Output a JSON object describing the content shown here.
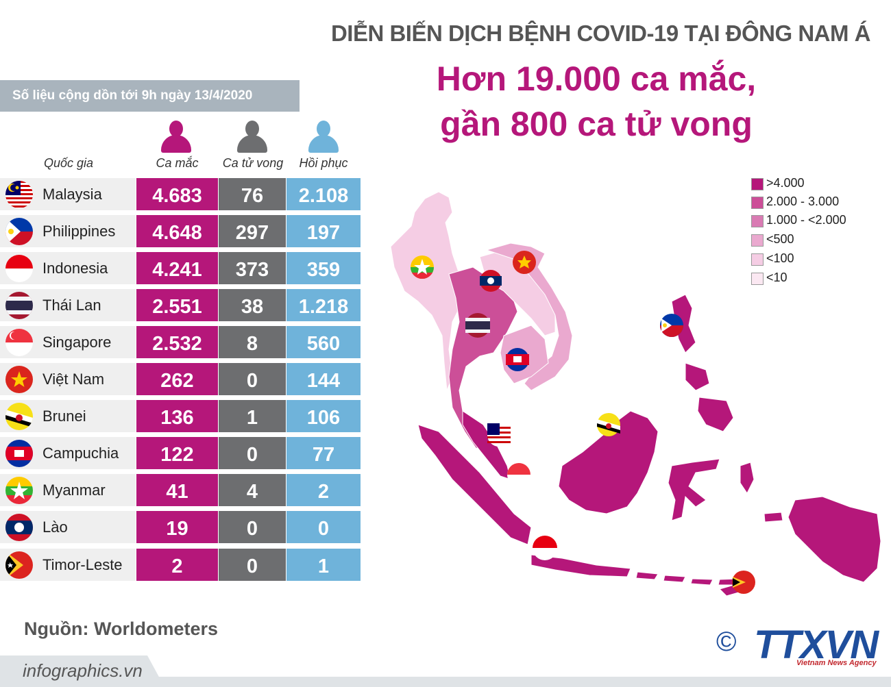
{
  "header": {
    "top_title": "DIỄN BIẾN DỊCH BỆNH COVID-19 TẠI ĐÔNG NAM Á",
    "headline_line1": "Hơn 19.000 ca mắc,",
    "headline_line2": "gần 800 ca tử vong"
  },
  "date_banner": "Số liệu cộng dồn tới 9h ngày 13/4/2020",
  "columns": {
    "country": "Quốc gia",
    "cases": "Ca mắc",
    "deaths": "Ca tử vong",
    "recovered": "Hồi phục"
  },
  "colors": {
    "cases": "#b5177a",
    "deaths": "#6d6e70",
    "recovered": "#6fb3da"
  },
  "table_rows": [
    {
      "country": "Malaysia",
      "cases": "4.683",
      "deaths": "76",
      "recovered": "2.108",
      "flag": "malaysia-flag-icon"
    },
    {
      "country": "Philippines",
      "cases": "4.648",
      "deaths": "297",
      "recovered": "197",
      "flag": "philippines-flag-icon"
    },
    {
      "country": "Indonesia",
      "cases": "4.241",
      "deaths": "373",
      "recovered": "359",
      "flag": "indonesia-flag-icon"
    },
    {
      "country": "Thái Lan",
      "cases": "2.551",
      "deaths": "38",
      "recovered": "1.218",
      "flag": "thailand-flag-icon"
    },
    {
      "country": "Singapore",
      "cases": "2.532",
      "deaths": "8",
      "recovered": "560",
      "flag": "singapore-flag-icon"
    },
    {
      "country": "Việt Nam",
      "cases": "262",
      "deaths": "0",
      "recovered": "144",
      "flag": "vietnam-flag-icon"
    },
    {
      "country": "Brunei",
      "cases": "136",
      "deaths": "1",
      "recovered": "106",
      "flag": "brunei-flag-icon"
    },
    {
      "country": "Campuchia",
      "cases": "122",
      "deaths": "0",
      "recovered": "77",
      "flag": "cambodia-flag-icon"
    },
    {
      "country": "Myanmar",
      "cases": "41",
      "deaths": "4",
      "recovered": "2",
      "flag": "myanmar-flag-icon"
    },
    {
      "country": "Lào",
      "cases": "19",
      "deaths": "0",
      "recovered": "0",
      "flag": "laos-flag-icon"
    },
    {
      "country": "Timor-Leste",
      "cases": "2",
      "deaths": "0",
      "recovered": "1",
      "flag": "timor-leste-flag-icon"
    }
  ],
  "legend": [
    {
      "label": ">4.000",
      "color": "#b5177a"
    },
    {
      "label": "2.000 - 3.000",
      "color": "#cc4f98"
    },
    {
      "label": "1.000 - <2.000",
      "color": "#d97bb3"
    },
    {
      "label": "<500",
      "color": "#eaa9cf"
    },
    {
      "label": "<100",
      "color": "#f5cde4"
    },
    {
      "label": "<10",
      "color": "#fbe8f2"
    }
  ],
  "source": "Nguồn: Worldometers",
  "footer": "infographics.vn",
  "logo": {
    "copyright": "©",
    "name": "TTXVN",
    "tagline": "Vietnam News Agency"
  }
}
